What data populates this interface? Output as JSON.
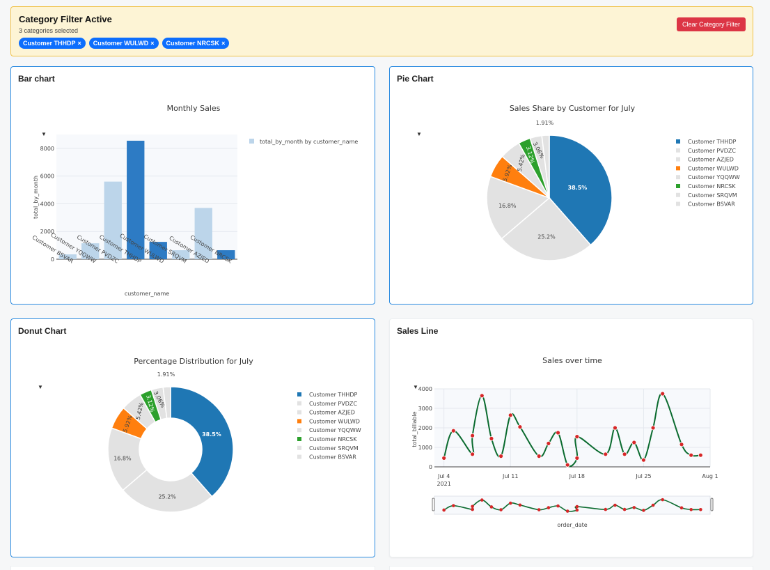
{
  "filter": {
    "title": "Category Filter Active",
    "subtitle": "3 categories selected",
    "chips": [
      "Customer THHDP",
      "Customer WULWD",
      "Customer NRCSK"
    ],
    "clear_label": "Clear Category Filter",
    "close_glyph": "×"
  },
  "colors": {
    "dark_blue": "#2d7bc4",
    "light_blue": "#bcd5ea",
    "pie_blue": "#1f77b4",
    "pie_gray": "#e2e2e2",
    "pie_orange": "#ff7f0e",
    "pie_green": "#2ca02c",
    "line_green": "#0b6b2f",
    "point_red": "#d62728",
    "warning_bg": "#fdf4d5",
    "danger": "#dc3545",
    "chip": "#0d6efd"
  },
  "cards": {
    "bar": {
      "title": "Bar chart"
    },
    "pie": {
      "title": "Pie Chart"
    },
    "donut": {
      "title": "Donut Chart"
    },
    "line": {
      "title": "Sales Line"
    }
  },
  "chart_data": [
    {
      "id": "bar",
      "type": "bar",
      "title": "Monthly Sales",
      "xlabel": "customer_name",
      "ylabel": "total_by_month",
      "legend_label": "total_by_month by customer_name",
      "legend_position": "top-right",
      "categories": [
        "Customer BSVAR",
        "Customer YQQWW",
        "Customer PVDZC",
        "Customer THHDP",
        "Customer WULWD",
        "Customer SRQVM",
        "Customer AZJED",
        "Customer NRCSK"
      ],
      "values": [
        350,
        1150,
        5600,
        8550,
        1250,
        650,
        3700,
        650
      ],
      "highlighted": [
        false,
        false,
        false,
        true,
        true,
        false,
        false,
        true
      ],
      "ylim": [
        0,
        9000
      ],
      "yticks": [
        0,
        2000,
        4000,
        6000,
        8000
      ],
      "ytick_labels": [
        "0",
        "2000",
        "4000",
        "6000",
        "8000"
      ],
      "grid": true
    },
    {
      "id": "pie",
      "type": "pie",
      "title": "Sales Share by Customer for July",
      "legend_position": "right",
      "labels": [
        "Customer THHDP",
        "Customer PVDZC",
        "Customer AZJED",
        "Customer WULWD",
        "Customer YQQWW",
        "Customer NRCSK",
        "Customer SRQVM",
        "Customer BSVAR"
      ],
      "values": [
        38.5,
        25.2,
        16.8,
        5.92,
        5.42,
        3.12,
        3.06,
        1.91
      ],
      "display_labels": [
        "38.5%",
        "25.2%",
        "16.8%",
        "5.92%",
        "5.42%",
        "3.12%",
        "3.06%",
        "1.91%"
      ],
      "highlighted": [
        true,
        false,
        false,
        true,
        false,
        true,
        false,
        false
      ]
    },
    {
      "id": "donut",
      "type": "pie",
      "hole": 0.5,
      "title": "Percentage Distribution for July",
      "legend_position": "right",
      "labels": [
        "Customer THHDP",
        "Customer PVDZC",
        "Customer AZJED",
        "Customer WULWD",
        "Customer YQQWW",
        "Customer NRCSK",
        "Customer SRQVM",
        "Customer BSVAR"
      ],
      "values": [
        38.5,
        25.2,
        16.8,
        5.92,
        5.42,
        3.12,
        3.06,
        1.91
      ],
      "display_labels": [
        "38.5%",
        "25.2%",
        "16.8%",
        "5.92%",
        "5.42%",
        "3.12%",
        "3.06%",
        "1.91%"
      ],
      "highlighted": [
        true,
        false,
        false,
        true,
        false,
        true,
        false,
        false
      ]
    },
    {
      "id": "line",
      "type": "line",
      "title": "Sales over time",
      "xlabel": "order_date",
      "ylabel": "total_billable",
      "x": [
        "2021-07-04",
        "2021-07-05",
        "2021-07-07",
        "2021-07-07",
        "2021-07-08",
        "2021-07-09",
        "2021-07-10",
        "2021-07-11",
        "2021-07-12",
        "2021-07-14",
        "2021-07-15",
        "2021-07-16",
        "2021-07-17",
        "2021-07-18",
        "2021-07-18",
        "2021-07-21",
        "2021-07-22",
        "2021-07-23",
        "2021-07-24",
        "2021-07-25",
        "2021-07-26",
        "2021-07-27",
        "2021-07-29",
        "2021-07-30",
        "2021-07-31"
      ],
      "y": [
        450,
        1850,
        650,
        1600,
        3650,
        1450,
        550,
        2650,
        2050,
        550,
        1200,
        1750,
        100,
        450,
        1550,
        650,
        2000,
        650,
        1250,
        350,
        2000,
        3750,
        1150,
        600,
        600
      ],
      "xlim": [
        "2021-07-03",
        "2021-08-01"
      ],
      "xticks": [
        "2021-07-04",
        "2021-07-11",
        "2021-07-18",
        "2021-07-25",
        "2021-08-01"
      ],
      "xtick_labels": [
        "Jul 4",
        "Jul 11",
        "Jul 18",
        "Jul 25",
        "Aug 1"
      ],
      "xtick_year": "2021",
      "ylim": [
        0,
        4000
      ],
      "yticks": [
        0,
        1000,
        2000,
        3000,
        4000
      ],
      "ytick_labels": [
        "0",
        "1000",
        "2000",
        "3000",
        "4000"
      ],
      "grid": true,
      "rangeslider": true
    }
  ]
}
